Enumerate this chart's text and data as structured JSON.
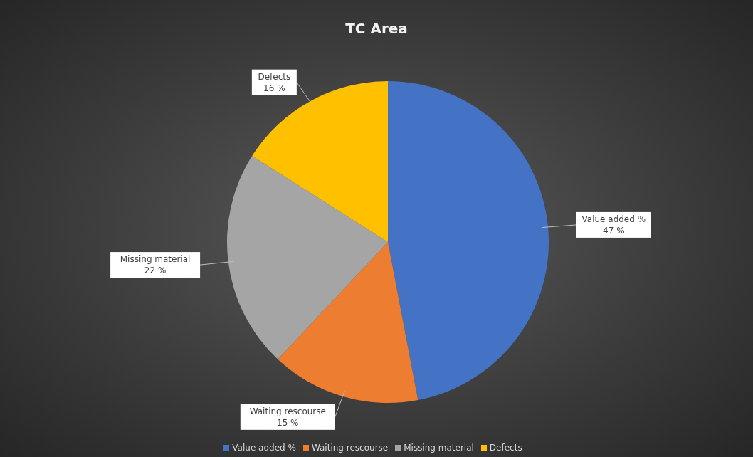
{
  "chart_data": {
    "type": "pie",
    "title": "TC Area",
    "categories": [
      "Value added %",
      "Waiting rescourse",
      "Missing material",
      "Defects"
    ],
    "values": [
      47,
      15,
      22,
      16
    ],
    "value_labels": [
      "47 %",
      "15 %",
      "22 %",
      "16 %"
    ],
    "colors": [
      "#4472c4",
      "#ed7d31",
      "#a5a5a5",
      "#ffc000"
    ],
    "legend": "bottom"
  }
}
